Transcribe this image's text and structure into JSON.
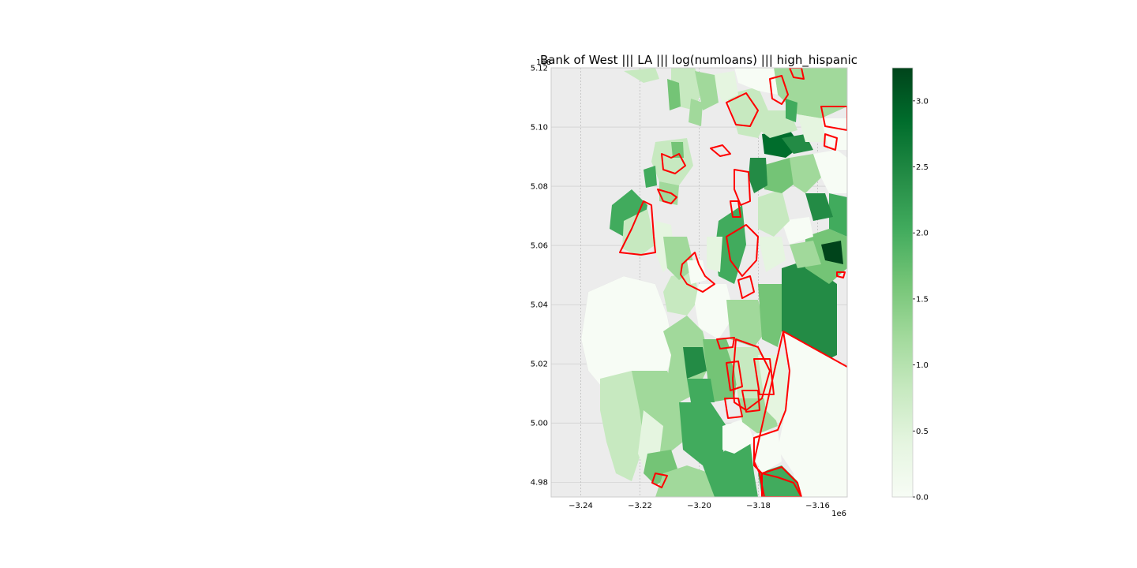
{
  "title": "Bank of West ||| LA ||| log(numloans) ||| high_hispanic",
  "x_ticks": [
    "−3.24",
    "−3.22",
    "−3.20",
    "−3.18",
    "−3.16"
  ],
  "x_tick_values": [
    -3.24,
    -3.22,
    -3.2,
    -3.18,
    -3.16
  ],
  "x_offset": "1e6",
  "y_ticks": [
    "5.12",
    "5.10",
    "5.08",
    "5.06",
    "5.04",
    "5.02",
    "5.00",
    "4.98"
  ],
  "y_tick_values": [
    5.12,
    5.1,
    5.08,
    5.06,
    5.04,
    5.02,
    5.0,
    4.98
  ],
  "y_offset": "1e6",
  "x_range": [
    -3.25,
    -3.15
  ],
  "y_range": [
    4.975,
    5.12
  ],
  "colorbar": {
    "ticks": [
      "0.0",
      "0.5",
      "1.0",
      "1.5",
      "2.0",
      "2.5",
      "3.0"
    ],
    "tick_values": [
      0.0,
      0.5,
      1.0,
      1.5,
      2.0,
      2.5,
      3.0
    ],
    "range": [
      0.0,
      3.25
    ],
    "colormap": "Greens"
  },
  "colors": {
    "background": "#ececec",
    "highlight": "#ff0000",
    "greens": [
      "#f7fcf5",
      "#e5f5e0",
      "#c7e9c0",
      "#a1d99b",
      "#74c476",
      "#41ab5d",
      "#238b45",
      "#006d2c",
      "#00441b"
    ]
  },
  "grid": true
}
